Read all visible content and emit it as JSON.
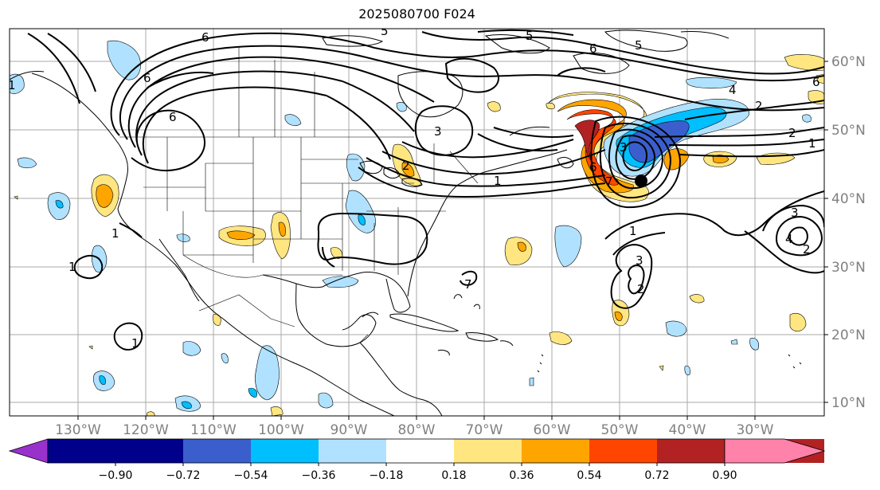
{
  "title": "2025080700 F024",
  "lat_ticks": [
    "60°N",
    "50°N",
    "40°N",
    "30°N",
    "20°N",
    "10°N"
  ],
  "lon_ticks": [
    "130°W",
    "120°W",
    "110°W",
    "100°W",
    "90°W",
    "80°W",
    "70°W",
    "60°W",
    "50°W",
    "40°W",
    "30°W"
  ],
  "colorbar": {
    "colors": [
      "#9932cc",
      "#00008b",
      "#3a5fcd",
      "#00bfff",
      "#b0e2ff",
      "#ffffff",
      "#ffe680",
      "#ffa500",
      "#ff4500",
      "#b22222",
      "#ff82ab"
    ],
    "tick_labels": [
      "−0.90",
      "−0.72",
      "−0.54",
      "−0.36",
      "−0.18",
      "0.18",
      "0.36",
      "0.54",
      "0.72",
      "0.90"
    ]
  },
  "contour_labels": [
    "6",
    "6",
    "6",
    "6",
    "5",
    "5",
    "5",
    "3",
    "3",
    "2",
    "2",
    "2",
    "1",
    "1",
    "1",
    "1",
    "4",
    "4",
    "3",
    "2",
    "1",
    "1",
    "3",
    "6",
    "7",
    "6",
    "1",
    "7",
    "2"
  ],
  "marker": {
    "lat": 42.8,
    "lon": -47.3,
    "color": "#000000"
  }
}
